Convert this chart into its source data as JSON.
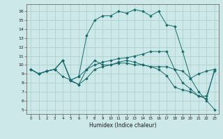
{
  "xlabel": "Humidex (Indice chaleur)",
  "xlim": [
    -0.5,
    23.5
  ],
  "ylim": [
    4.5,
    16.8
  ],
  "yticks": [
    5,
    6,
    7,
    8,
    9,
    10,
    11,
    12,
    13,
    14,
    15,
    16
  ],
  "xticks": [
    0,
    1,
    2,
    3,
    4,
    5,
    6,
    7,
    8,
    9,
    10,
    11,
    12,
    13,
    14,
    15,
    16,
    17,
    18,
    19,
    20,
    21,
    22,
    23
  ],
  "bg_color": "#cce8e8",
  "line_color": "#1a6b6b",
  "grid_color": "#aacccc",
  "series": [
    {
      "x": [
        0,
        1,
        2,
        3,
        4,
        5,
        6,
        7,
        8,
        9,
        10,
        11,
        12,
        13,
        14,
        15,
        16,
        17,
        18,
        19,
        20,
        21,
        22,
        23
      ],
      "y": [
        9.5,
        9.0,
        9.3,
        9.5,
        10.5,
        8.3,
        8.7,
        13.3,
        15.0,
        15.5,
        15.5,
        16.0,
        15.8,
        16.2,
        16.0,
        15.5,
        16.0,
        14.5,
        14.3,
        11.5,
        8.5,
        7.0,
        6.0,
        5.0
      ]
    },
    {
      "x": [
        0,
        1,
        2,
        3,
        4,
        5,
        6,
        7,
        8,
        9,
        10,
        11,
        12,
        13,
        14,
        15,
        16,
        17,
        18,
        19,
        20,
        21,
        22,
        23
      ],
      "y": [
        9.5,
        9.0,
        9.3,
        9.5,
        10.5,
        8.3,
        8.7,
        9.5,
        10.0,
        10.3,
        10.5,
        10.7,
        10.8,
        11.0,
        11.2,
        11.5,
        11.5,
        11.5,
        9.5,
        8.0,
        7.3,
        6.5,
        6.5,
        9.3
      ]
    },
    {
      "x": [
        0,
        1,
        2,
        3,
        4,
        5,
        6,
        7,
        8,
        9,
        10,
        11,
        12,
        13,
        14,
        15,
        16,
        17,
        18,
        19,
        20,
        21,
        22,
        23
      ],
      "y": [
        9.5,
        9.0,
        9.3,
        9.5,
        8.7,
        8.3,
        7.8,
        8.5,
        9.5,
        9.8,
        10.0,
        10.3,
        10.5,
        10.3,
        10.0,
        9.8,
        9.5,
        8.8,
        7.5,
        7.2,
        7.0,
        6.5,
        6.2,
        9.5
      ]
    },
    {
      "x": [
        0,
        1,
        2,
        3,
        4,
        5,
        6,
        7,
        8,
        9,
        10,
        11,
        12,
        13,
        14,
        15,
        16,
        17,
        18,
        19,
        20,
        21,
        22,
        23
      ],
      "y": [
        9.5,
        9.0,
        9.3,
        9.5,
        10.5,
        8.2,
        7.8,
        9.5,
        10.5,
        10.0,
        10.0,
        10.2,
        10.2,
        10.0,
        10.0,
        9.8,
        9.8,
        9.8,
        9.5,
        9.3,
        8.5,
        9.0,
        9.3,
        9.5
      ]
    }
  ]
}
